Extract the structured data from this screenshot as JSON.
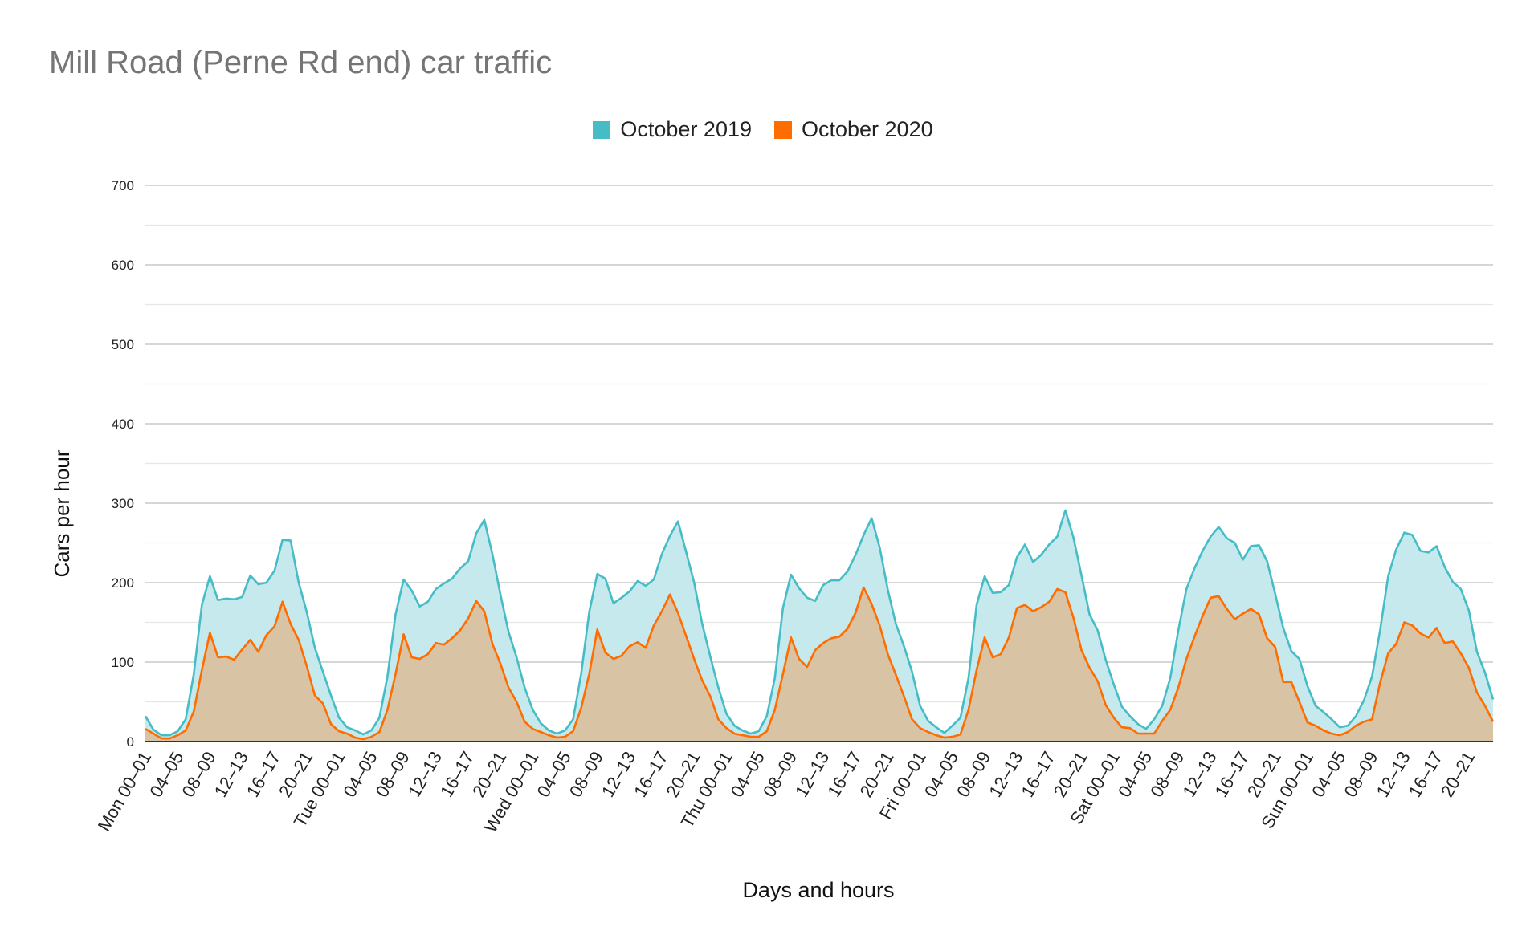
{
  "chart_data": {
    "type": "area",
    "title": "Mill Road (Perne Rd end) car traffic",
    "xlabel": "Days and hours",
    "ylabel": "Cars per hour",
    "ylim": [
      0,
      700
    ],
    "yticks": [
      0,
      100,
      200,
      300,
      400,
      500,
      600,
      700
    ],
    "grid": true,
    "legend_position": "top-center",
    "x_tick_labels": [
      "Mon 00–01",
      "04–05",
      "08–09",
      "12–13",
      "16–17",
      "20–21",
      "Tue 00–01",
      "04–05",
      "08–09",
      "12–13",
      "16–17",
      "20–21",
      "Wed 00–01",
      "04–05",
      "08–09",
      "12–13",
      "16–17",
      "20–21",
      "Thu 00–01",
      "04–05",
      "08–09",
      "12–13",
      "16–17",
      "20–21",
      "Fri 00–01",
      "04–05",
      "08–09",
      "12–13",
      "16–17",
      "20–21",
      "Sat 00–01",
      "04–05",
      "08–09",
      "12–13",
      "16–17",
      "20–21",
      "Sun 00–01",
      "04–05",
      "08–09",
      "12–13",
      "16–17",
      "20–21"
    ],
    "x_tick_step_hours": 4,
    "series": [
      {
        "name": "October 2019",
        "color": "#46bdc6",
        "fill": "#c5e9ec",
        "values": [
          32,
          15,
          8,
          8,
          13,
          28,
          85,
          172,
          208,
          178,
          180,
          179,
          182,
          209,
          198,
          200,
          215,
          254,
          253,
          200,
          163,
          118,
          88,
          58,
          30,
          18,
          14,
          9,
          14,
          30,
          82,
          160,
          204,
          190,
          170,
          176,
          192,
          199,
          205,
          218,
          227,
          262,
          279,
          236,
          185,
          138,
          106,
          68,
          40,
          23,
          14,
          10,
          14,
          28,
          85,
          163,
          211,
          205,
          174,
          181,
          189,
          202,
          196,
          204,
          236,
          259,
          277,
          239,
          200,
          148,
          107,
          68,
          35,
          20,
          14,
          10,
          13,
          32,
          80,
          168,
          210,
          193,
          181,
          177,
          197,
          203,
          203,
          214,
          235,
          260,
          281,
          244,
          191,
          148,
          120,
          88,
          45,
          26,
          18,
          11,
          20,
          30,
          80,
          172,
          208,
          187,
          188,
          197,
          232,
          248,
          226,
          235,
          248,
          258,
          291,
          257,
          209,
          160,
          140,
          103,
          72,
          44,
          32,
          22,
          16,
          28,
          45,
          80,
          140,
          192,
          218,
          240,
          258,
          270,
          256,
          250,
          229,
          246,
          247,
          227,
          186,
          143,
          114,
          104,
          70,
          45,
          37,
          28,
          18,
          20,
          32,
          52,
          82,
          140,
          208,
          242,
          263,
          260,
          240,
          238,
          246,
          220,
          201,
          192,
          165,
          113,
          87,
          53
        ]
      },
      {
        "name": "October 2020",
        "color": "#ff6d01",
        "fill": "#d9c2a0",
        "values": [
          16,
          10,
          4,
          4,
          8,
          14,
          38,
          90,
          137,
          106,
          107,
          103,
          116,
          128,
          113,
          134,
          145,
          176,
          148,
          128,
          95,
          58,
          48,
          22,
          13,
          10,
          5,
          3,
          6,
          12,
          40,
          85,
          135,
          106,
          104,
          110,
          124,
          122,
          130,
          140,
          155,
          177,
          164,
          123,
          98,
          68,
          50,
          25,
          16,
          12,
          8,
          5,
          6,
          13,
          42,
          85,
          141,
          112,
          104,
          108,
          120,
          125,
          118,
          146,
          164,
          185,
          162,
          133,
          104,
          77,
          57,
          28,
          17,
          10,
          8,
          6,
          6,
          13,
          40,
          85,
          131,
          104,
          94,
          115,
          124,
          130,
          132,
          142,
          162,
          194,
          173,
          146,
          110,
          84,
          57,
          28,
          17,
          12,
          8,
          5,
          6,
          9,
          40,
          90,
          131,
          106,
          110,
          131,
          168,
          172,
          164,
          169,
          176,
          192,
          188,
          156,
          115,
          93,
          76,
          46,
          30,
          18,
          17,
          10,
          10,
          10,
          26,
          40,
          68,
          104,
          132,
          158,
          181,
          183,
          167,
          154,
          161,
          167,
          160,
          130,
          119,
          75,
          75,
          50,
          24,
          20,
          14,
          10,
          8,
          12,
          20,
          25,
          28,
          74,
          111,
          123,
          150,
          146,
          136,
          131,
          143,
          124,
          126,
          111,
          93,
          62,
          45,
          25
        ]
      }
    ]
  }
}
